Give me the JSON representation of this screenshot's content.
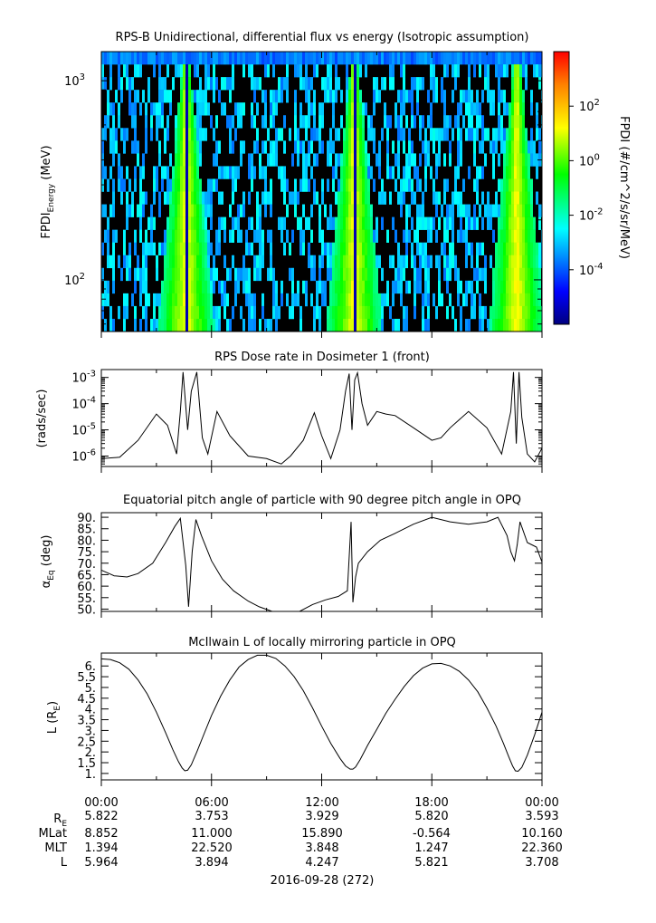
{
  "panels": {
    "spectrogram": {
      "title": "RPS-B  Unidirectional, differential flux vs energy (Isotropic assumption)",
      "ylabel_main": "FPDI",
      "ylabel_sub": "Energy",
      "ylabel_unit": " (MeV)",
      "colorbar_label": "FPDI (#/cm^2/s/sr/MeV)"
    },
    "dose": {
      "title": "RPS  Dose rate in Dosimeter 1 (front)",
      "ylabel": "(rads/sec)"
    },
    "pitch": {
      "title": "Equatorial pitch angle of particle with 90 degree pitch angle in OPQ",
      "ylabel_main": "α",
      "ylabel_sub": "Eq",
      "ylabel_unit": " (deg)"
    },
    "lshell": {
      "title": "McIlwain L of locally mirroring particle in OPQ",
      "ylabel_main": "L (R",
      "ylabel_sub": "E",
      "ylabel_end": ")"
    }
  },
  "ephemeris": {
    "row_labels": [
      {
        "main": "R",
        "sub": "E"
      },
      {
        "main": "MLat",
        "sub": ""
      },
      {
        "main": "MLT",
        "sub": ""
      },
      {
        "main": "L",
        "sub": ""
      }
    ],
    "time_labels": [
      "00:00",
      "06:00",
      "12:00",
      "18:00",
      "00:00"
    ],
    "rows": [
      [
        "5.822",
        "3.753",
        "3.929",
        "5.820",
        "3.593"
      ],
      [
        "8.852",
        "11.000",
        "15.890",
        "-0.564",
        "10.160"
      ],
      [
        "1.394",
        "22.520",
        "3.848",
        "1.247",
        "22.360"
      ],
      [
        "5.964",
        "3.894",
        "4.247",
        "5.821",
        "3.708"
      ]
    ],
    "date_label": "2016-09-28 (272)"
  },
  "chart_data": [
    {
      "type": "heatmap",
      "title": "RPS-B  Unidirectional, differential flux vs energy (Isotropic assumption)",
      "xlabel": "",
      "ylabel": "FPDI Energy (MeV)",
      "x_range_hours": [
        0,
        24
      ],
      "y_scale": "log",
      "ylim": [
        55,
        1400
      ],
      "y_ticks": [
        {
          "value": 100,
          "base": "10",
          "exp": "2"
        },
        {
          "value": 1000,
          "base": "10",
          "exp": "3"
        }
      ],
      "colorbar": {
        "scale": "log",
        "range": [
          1e-06,
          10000
        ],
        "ticks": [
          {
            "value": 0.0001,
            "base": "10",
            "exp": "-4"
          },
          {
            "value": 0.01,
            "base": "10",
            "exp": "-2"
          },
          {
            "value": 1,
            "base": "10",
            "exp": "0"
          },
          {
            "value": 100,
            "base": "10",
            "exp": "2"
          }
        ]
      },
      "peak_times_hours": [
        4.55,
        13.7,
        22.55
      ]
    },
    {
      "type": "line",
      "title": "RPS  Dose rate in Dosimeter 1 (front)",
      "ylabel": "(rads/sec)",
      "y_scale": "log",
      "ylim": [
        4e-07,
        0.002
      ],
      "y_ticks": [
        {
          "value": 1e-06,
          "base": "10",
          "exp": "-6"
        },
        {
          "value": 1e-05,
          "base": "10",
          "exp": "-5"
        },
        {
          "value": 0.0001,
          "base": "10",
          "exp": "-4"
        },
        {
          "value": 0.001,
          "base": "10",
          "exp": "-3"
        }
      ],
      "x": [
        0,
        1,
        2,
        3,
        3.6,
        4.1,
        4.3,
        4.45,
        4.7,
        4.9,
        5.2,
        5.5,
        5.8,
        6.3,
        7,
        8,
        9,
        9.8,
        10.3,
        11,
        11.6,
        12,
        12.5,
        13,
        13.3,
        13.5,
        13.65,
        13.8,
        13.95,
        14.2,
        14.5,
        15,
        15.5,
        16,
        17,
        18,
        18.5,
        19,
        20,
        21,
        21.8,
        22.3,
        22.45,
        22.6,
        22.75,
        22.9,
        23.2,
        23.6,
        24
      ],
      "y": [
        8e-07,
        9e-07,
        4e-06,
        4e-05,
        1.5e-05,
        1.2e-06,
        5e-05,
        0.0016,
        1e-05,
        0.0003,
        0.0016,
        5e-06,
        1.2e-06,
        5e-05,
        6e-06,
        1e-06,
        8e-07,
        5e-07,
        1e-06,
        4e-06,
        4.5e-05,
        6e-06,
        8e-07,
        1e-05,
        0.0003,
        0.0014,
        1e-05,
        0.0008,
        0.0015,
        0.0001,
        1.5e-05,
        5e-05,
        4e-05,
        3.5e-05,
        1.2e-05,
        4e-06,
        5e-06,
        1.2e-05,
        5e-05,
        1.2e-05,
        1.2e-06,
        5e-05,
        0.0016,
        3e-06,
        0.0016,
        3e-05,
        1.2e-06,
        6e-07,
        2e-06
      ]
    },
    {
      "type": "line",
      "title": "Equatorial pitch angle of particle with 90 degree pitch angle in OPQ",
      "ylabel": "αEq (deg)",
      "ylim": [
        49,
        92
      ],
      "y_ticks": [
        50,
        55,
        60,
        65,
        70,
        75,
        80,
        85,
        90
      ],
      "x": [
        0,
        0.7,
        1.4,
        2.0,
        2.8,
        3.5,
        4.0,
        4.3,
        4.6,
        4.75,
        4.95,
        5.15,
        5.45,
        6.0,
        6.6,
        7.2,
        8.0,
        8.6,
        9.3,
        10.0,
        10.8,
        11.5,
        12.2,
        12.9,
        13.4,
        13.6,
        13.7,
        13.85,
        14.0,
        14.5,
        15.2,
        16.0,
        17.0,
        18.0,
        19.0,
        20.0,
        21.0,
        21.6,
        22.1,
        22.3,
        22.5,
        22.65,
        22.8,
        23.2,
        23.7,
        24
      ],
      "y": [
        67,
        64.5,
        64,
        65.5,
        70,
        79,
        86,
        89.5,
        69,
        51,
        75,
        89,
        82,
        71,
        63,
        58,
        53.5,
        51,
        49,
        49,
        49,
        52,
        54,
        55.5,
        58,
        88,
        53,
        64,
        70,
        75,
        80,
        83,
        87,
        90,
        88,
        87,
        88,
        90,
        82,
        75,
        71,
        78,
        88,
        79,
        77,
        70.5
      ]
    },
    {
      "type": "line",
      "title": "McIlwain L of locally mirroring particle in OPQ",
      "ylabel": "L (RE)",
      "ylim": [
        0.7,
        6.6
      ],
      "y_ticks": [
        1,
        1.5,
        2,
        2.5,
        3,
        3.5,
        4,
        4.5,
        5,
        5.5,
        6
      ],
      "y_tick_labels": [
        "1.",
        "1.5",
        "2.",
        "2.5",
        "3.",
        "3.5",
        "4.",
        "4.5",
        "5.",
        "5.5",
        "6."
      ],
      "x": [
        0,
        0.5,
        1,
        1.5,
        2,
        2.5,
        3,
        3.5,
        3.9,
        4.2,
        4.4,
        4.55,
        4.7,
        4.9,
        5.2,
        5.6,
        6.0,
        6.5,
        7,
        7.5,
        8,
        8.5,
        9,
        9.5,
        10,
        10.5,
        11,
        11.5,
        12,
        12.5,
        13,
        13.3,
        13.55,
        13.7,
        13.85,
        14.1,
        14.5,
        15,
        15.5,
        16,
        16.5,
        17,
        17.5,
        18,
        18.5,
        19,
        19.5,
        20,
        20.5,
        21,
        21.5,
        21.9,
        22.2,
        22.4,
        22.55,
        22.7,
        22.9,
        23.2,
        23.6,
        24
      ],
      "y": [
        6.33,
        6.3,
        6.15,
        5.85,
        5.35,
        4.7,
        3.85,
        2.9,
        2.1,
        1.55,
        1.25,
        1.12,
        1.15,
        1.4,
        2.0,
        2.85,
        3.7,
        4.6,
        5.35,
        5.95,
        6.3,
        6.5,
        6.5,
        6.35,
        6.0,
        5.5,
        4.85,
        4.05,
        3.2,
        2.4,
        1.7,
        1.35,
        1.2,
        1.2,
        1.3,
        1.65,
        2.3,
        3.05,
        3.8,
        4.45,
        5.05,
        5.55,
        5.9,
        6.1,
        6.12,
        6.0,
        5.75,
        5.35,
        4.8,
        4.05,
        3.2,
        2.4,
        1.75,
        1.35,
        1.12,
        1.1,
        1.28,
        1.85,
        2.8,
        3.85
      ]
    }
  ]
}
